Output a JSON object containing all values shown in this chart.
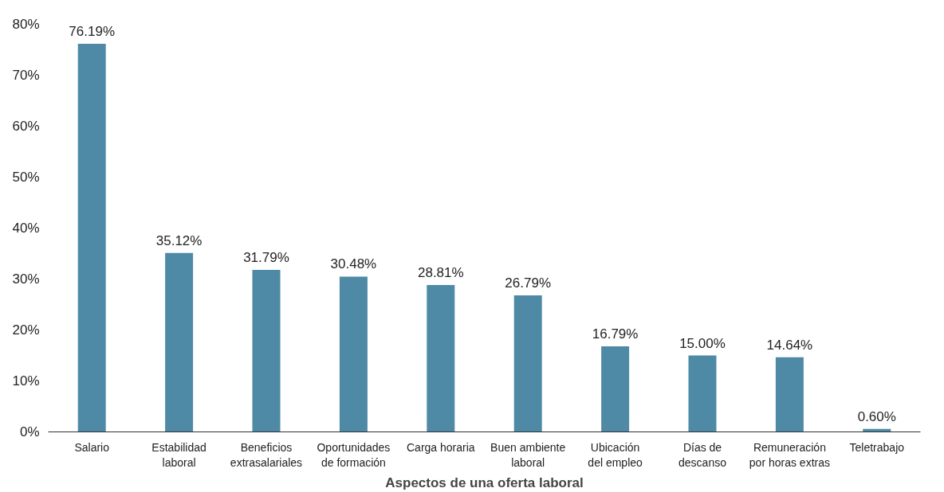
{
  "chart_data": {
    "type": "bar",
    "xlabel": "Aspectos de una oferta laboral",
    "categories": [
      "Salario",
      "Estabilidad\nlaboral",
      "Beneficios\nextrasalariales",
      "Oportunidades\nde formación",
      "Carga horaria",
      "Buen ambiente\nlaboral",
      "Ubicación\ndel empleo",
      "Días de\ndescanso",
      "Remuneración\npor horas extras",
      "Teletrabajo"
    ],
    "values": [
      76.19,
      35.12,
      31.79,
      30.48,
      28.81,
      26.79,
      16.79,
      15.0,
      14.64,
      0.6
    ],
    "value_labels": [
      "76.19%",
      "35.12%",
      "31.79%",
      "30.48%",
      "28.81%",
      "26.79%",
      "16.79%",
      "15.00%",
      "14.64%",
      "0.60%"
    ],
    "color": "#4e8aa6",
    "ylim": [
      0,
      80
    ],
    "yticks": [
      {
        "value": 0,
        "label": "0%"
      },
      {
        "value": 10,
        "label": "10%"
      },
      {
        "value": 20,
        "label": "20%"
      },
      {
        "value": 30,
        "label": "30%"
      },
      {
        "value": 40,
        "label": "40%"
      },
      {
        "value": 50,
        "label": "50%"
      },
      {
        "value": 60,
        "label": "60%"
      },
      {
        "value": 70,
        "label": "70%"
      },
      {
        "value": 80,
        "label": "80%"
      }
    ],
    "grid": false
  }
}
